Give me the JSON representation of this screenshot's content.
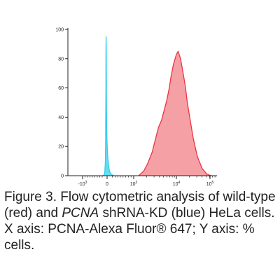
{
  "chart_data": {
    "type": "area",
    "x_scale": "biexponential",
    "ylim": [
      0,
      100
    ],
    "y_ticks": [
      0,
      20,
      40,
      60,
      80,
      100
    ],
    "x_ticks": [
      {
        "base": "-10",
        "exp": "3",
        "value": -1000
      },
      {
        "base": "0",
        "exp": "",
        "value": 0
      },
      {
        "base": "10",
        "exp": "3",
        "value": 1000
      },
      {
        "base": "10",
        "exp": "4",
        "value": 10000
      },
      {
        "base": "10",
        "exp": "5",
        "value": 100000
      }
    ],
    "grid": false,
    "series": [
      {
        "color": "#33ccee",
        "fill": "#66ddf2",
        "points": [
          [
            -170,
            0
          ],
          [
            -110,
            1
          ],
          [
            -90,
            3
          ],
          [
            -70,
            10
          ],
          [
            -60,
            25
          ],
          [
            -50,
            60
          ],
          [
            -45,
            85
          ],
          [
            -40,
            95
          ],
          [
            -32,
            80
          ],
          [
            -25,
            50
          ],
          [
            -15,
            30
          ],
          [
            0,
            22
          ],
          [
            20,
            14
          ],
          [
            50,
            8
          ],
          [
            90,
            3
          ],
          [
            150,
            1
          ],
          [
            250,
            0
          ]
        ]
      },
      {
        "color": "#ee3344",
        "fill": "#f4a0a4",
        "points": [
          [
            1300,
            0
          ],
          [
            1700,
            3
          ],
          [
            2100,
            8
          ],
          [
            2700,
            16
          ],
          [
            3300,
            26
          ],
          [
            3800,
            33
          ],
          [
            4500,
            38
          ],
          [
            5200,
            45
          ],
          [
            6000,
            52
          ],
          [
            6800,
            60
          ],
          [
            7500,
            68
          ],
          [
            8500,
            76
          ],
          [
            10000,
            83
          ],
          [
            11000,
            85
          ],
          [
            12500,
            80
          ],
          [
            14000,
            72
          ],
          [
            16000,
            62
          ],
          [
            18000,
            50
          ],
          [
            21000,
            38
          ],
          [
            25000,
            25
          ],
          [
            31000,
            13
          ],
          [
            40000,
            5
          ],
          [
            52000,
            1
          ],
          [
            65000,
            0
          ]
        ]
      }
    ]
  },
  "caption": {
    "text1": "Figure 3. Flow cytometric analysis of wild-type (red) and ",
    "gene": "PCNA",
    "text2": " shRNA-KD (blue) HeLa cells. X axis: PCNA-Alexa Fluor® 647; Y axis: % cells."
  }
}
